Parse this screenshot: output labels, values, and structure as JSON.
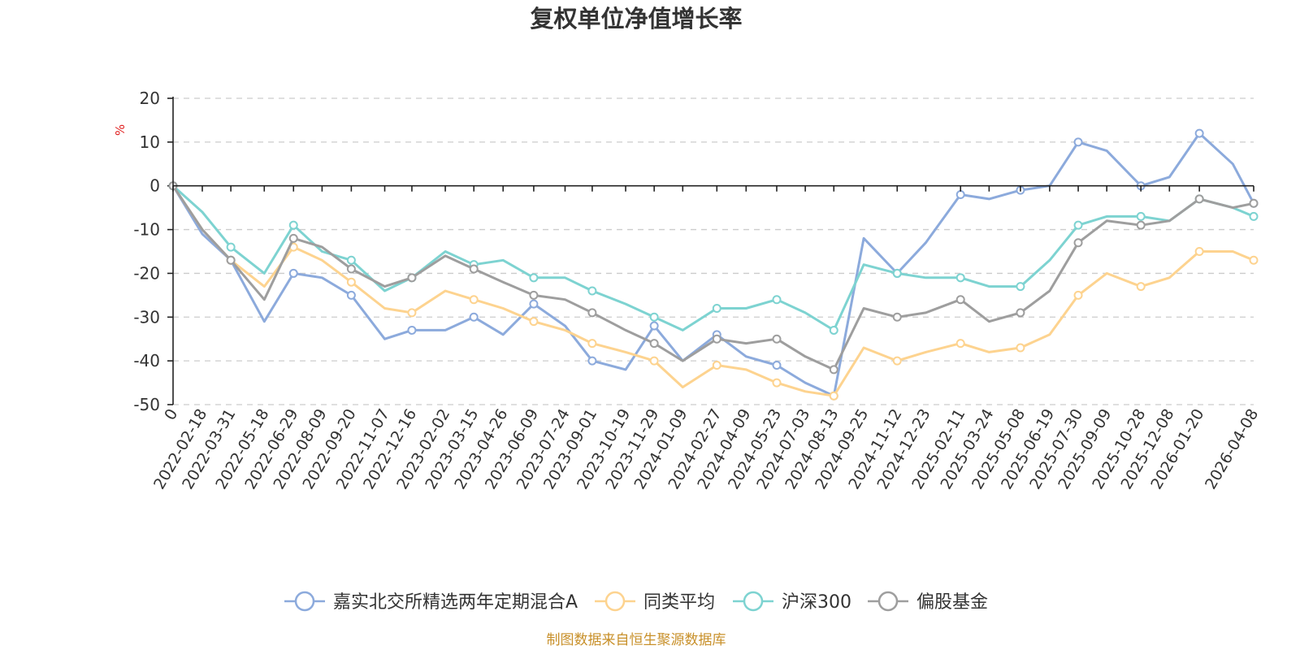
{
  "chart_data": {
    "type": "line",
    "title": "复权单位净值增长率",
    "ylabel": "%",
    "ylim": [
      -50,
      20
    ],
    "yticks": [
      20,
      10,
      0,
      -10,
      -20,
      -30,
      -40,
      -50
    ],
    "grid": true,
    "legend_position": "bottom",
    "x_start_label": "0",
    "x_tick_labels": [
      "2022-02-18",
      "2022-03-31",
      "2022-05-18",
      "2022-06-29",
      "2022-08-09",
      "2022-09-20",
      "2022-11-07",
      "2022-12-16",
      "2023-02-02",
      "2023-03-15",
      "2023-04-26",
      "2023-06-09",
      "2023-07-24",
      "2023-09-01",
      "2023-10-19",
      "2023-11-29",
      "2024-01-09",
      "2024-02-27",
      "2024-04-09",
      "2024-05-23",
      "2024-07-03",
      "2024-08-13",
      "2024-09-25",
      "2024-11-12",
      "2024-12-23",
      "2025-02-11",
      "2025-03-24",
      "2025-05-08",
      "2025-06-19",
      "2025-07-30",
      "2025-09-09",
      "2025-10-28",
      "2025-12-08",
      "2026-01-20",
      "2026-04-08"
    ],
    "x": [
      "2022-01-07",
      "2022-02-18",
      "2022-03-31",
      "2022-05-18",
      "2022-06-29",
      "2022-08-09",
      "2022-09-20",
      "2022-11-07",
      "2022-12-16",
      "2023-02-02",
      "2023-03-15",
      "2023-04-26",
      "2023-06-09",
      "2023-07-24",
      "2023-09-01",
      "2023-10-19",
      "2023-11-29",
      "2024-01-09",
      "2024-02-27",
      "2024-04-09",
      "2024-05-23",
      "2024-07-03",
      "2024-08-13",
      "2024-09-25",
      "2024-11-12",
      "2024-12-23",
      "2025-02-11",
      "2025-03-24",
      "2025-05-08",
      "2025-06-19",
      "2025-07-30",
      "2025-09-09",
      "2025-10-28",
      "2025-12-08",
      "2026-01-20",
      "2026-03-09",
      "2026-04-08"
    ],
    "series": [
      {
        "name": "嘉实北交所精选两年定期混合A",
        "color": "#8caadc",
        "values": [
          0,
          -11,
          -17,
          -31,
          -20,
          -21,
          -25,
          -35,
          -33,
          -33,
          -30,
          -34,
          -27,
          -32,
          -40,
          -42,
          -32,
          -40,
          -34,
          -39,
          -41,
          -45,
          -48,
          -12,
          -20,
          -13,
          -2,
          -3,
          -1,
          0,
          10,
          8,
          0,
          2,
          12,
          5,
          -4
        ]
      },
      {
        "name": "同类平均",
        "color": "#fdd38f",
        "values": [
          0,
          -10,
          -17,
          -23,
          -14,
          -17,
          -22,
          -28,
          -29,
          -24,
          -26,
          -28,
          -31,
          -33,
          -36,
          -38,
          -40,
          -46,
          -41,
          -42,
          -45,
          -47,
          -48,
          -37,
          -40,
          -38,
          -36,
          -38,
          -37,
          -34,
          -25,
          -20,
          -23,
          -21,
          -15,
          -15,
          -17
        ]
      },
      {
        "name": "沪深300",
        "color": "#7dd3d1",
        "values": [
          0,
          -6,
          -14,
          -20,
          -9,
          -15,
          -17,
          -24,
          -21,
          -15,
          -18,
          -17,
          -21,
          -21,
          -24,
          -27,
          -30,
          -33,
          -28,
          -28,
          -26,
          -29,
          -33,
          -18,
          -20,
          -21,
          -21,
          -23,
          -23,
          -17,
          -9,
          -7,
          -7,
          -8,
          -3,
          -5,
          -7
        ]
      },
      {
        "name": "偏股基金",
        "color": "#9e9e9e",
        "values": [
          0,
          -10,
          -17,
          -26,
          -12,
          -14,
          -19,
          -23,
          -21,
          -16,
          -19,
          -22,
          -25,
          -26,
          -29,
          -33,
          -36,
          -40,
          -35,
          -36,
          -35,
          -39,
          -42,
          -28,
          -30,
          -29,
          -26,
          -31,
          -29,
          -24,
          -13,
          -8,
          -9,
          -8,
          -3,
          -5,
          -4
        ]
      }
    ]
  },
  "source_note": "制图数据来自恒生聚源数据库"
}
